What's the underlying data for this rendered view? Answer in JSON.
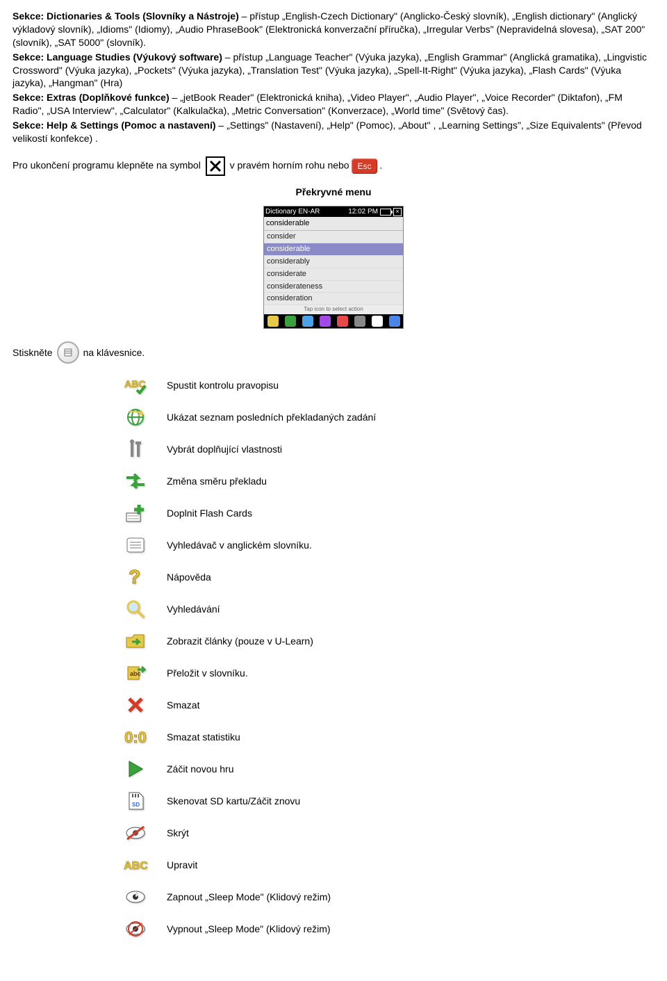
{
  "sec1_head": "Sekce: Dictionaries & Tools (Slovníky a Nástroje)",
  "sec1_body": " – přístup „English-Czech Dictionary\" (Anglicko-Český slovník), „English dictionary\" (Anglický výkladový slovník), „Idioms\" (Idiomy), „Audio PhraseBook\" (Elektronická konverzační příručka), „Irregular Verbs\" (Nepravidelná slovesa), „SAT 200\" (slovník), „SAT 5000\" (slovník).",
  "sec2_head": "Sekce: Language Studies (Výukový software)",
  "sec2_body": " – přístup „Language Teacher\" (Výuka jazyka), „English Grammar\" (Anglická gramatika), „Lingvistic Crossword\" (Výuka jazyka), „Pockets\" (Výuka jazyka), „Translation Test\" (Výuka jazyka), „Spell-It-Right\" (Výuka jazyka), „Flash Cards\" (Výuka jazyka), „Hangman\" (Hra)",
  "sec3_head": "Sekce: Extras (Doplňkové funkce)",
  "sec3_body": " – „jetBook Reader\" (Elektronická kniha), „Video Player\", „Audio Player\", „Voice Recorder\" (Diktafon), „FM Radio\", „USA Interview\", „Calculator\" (Kalkulačka), „Metric Conversation\" (Konverzace), „World time\" (Světový čas).",
  "sec4_head": "Sekce: Help & Settings (Pomoc a nastavení)",
  "sec4_body": " – „Settings\" (Nastavení), „Help\" (Pomoc), „About\" , „Learning Settings\", „Size Equivalents\" (Převod velikostí konfekce) .",
  "exit_a": "Pro ukončení programu klepněte na symbol ",
  "exit_b": " v pravém horním rohu nebo ",
  "exit_c": ".",
  "esc_label": "Esc",
  "menu_title": "Překryvné menu",
  "shot": {
    "title": "Dictionary EN-AR",
    "time": "12:02 PM",
    "input": "considerable",
    "items": [
      "consider",
      "considerable",
      "considerably",
      "considerate",
      "considerateness",
      "consideration"
    ],
    "sel_index": 1,
    "hint": "Tap icon to select action"
  },
  "press_a": "Stiskněte ",
  "press_b": " na klávesnice.",
  "rows": [
    {
      "icon": "abc-check",
      "label": "Spustit kontrolu pravopisu"
    },
    {
      "icon": "globe",
      "label": "Ukázat seznam posledních překladaných zadání"
    },
    {
      "icon": "tools",
      "label": "Vybrát doplňující vlastnosti"
    },
    {
      "icon": "swap",
      "label": "Změna směru překladu"
    },
    {
      "icon": "plus",
      "label": "Doplnit Flash Cards"
    },
    {
      "icon": "doc-list",
      "label": "Vyhledávač v anglickém slovníku."
    },
    {
      "icon": "help",
      "label": "Nápověda"
    },
    {
      "icon": "magnify",
      "label": "Vyhledávání"
    },
    {
      "icon": "folder-arrow",
      "label": "Zobrazit články (pouze v U-Learn)"
    },
    {
      "icon": "dict",
      "label": "Přeložit v slovníku."
    },
    {
      "icon": "cross",
      "label": "Smazat"
    },
    {
      "icon": "zero",
      "label": "Smazat statistiku"
    },
    {
      "icon": "play",
      "label": "Záčit novou hru"
    },
    {
      "icon": "sd",
      "label": "Skenovat SD kartu/Záčit znovu"
    },
    {
      "icon": "eye-off",
      "label": "Skrýt"
    },
    {
      "icon": "abc",
      "label": "Upravit"
    },
    {
      "icon": "sleep-on",
      "label": "Zapnout „Sleep Mode\" (Klidový režim)"
    },
    {
      "icon": "sleep-off",
      "label": "Vypnout „Sleep Mode\" (Klidový režim)"
    }
  ],
  "toolbar_colors": [
    "#e6c94a",
    "#3aa23a",
    "#4aa3e6",
    "#a34ae6",
    "#e64a4a",
    "#888888",
    "#ffffff",
    "#4a86e6"
  ]
}
